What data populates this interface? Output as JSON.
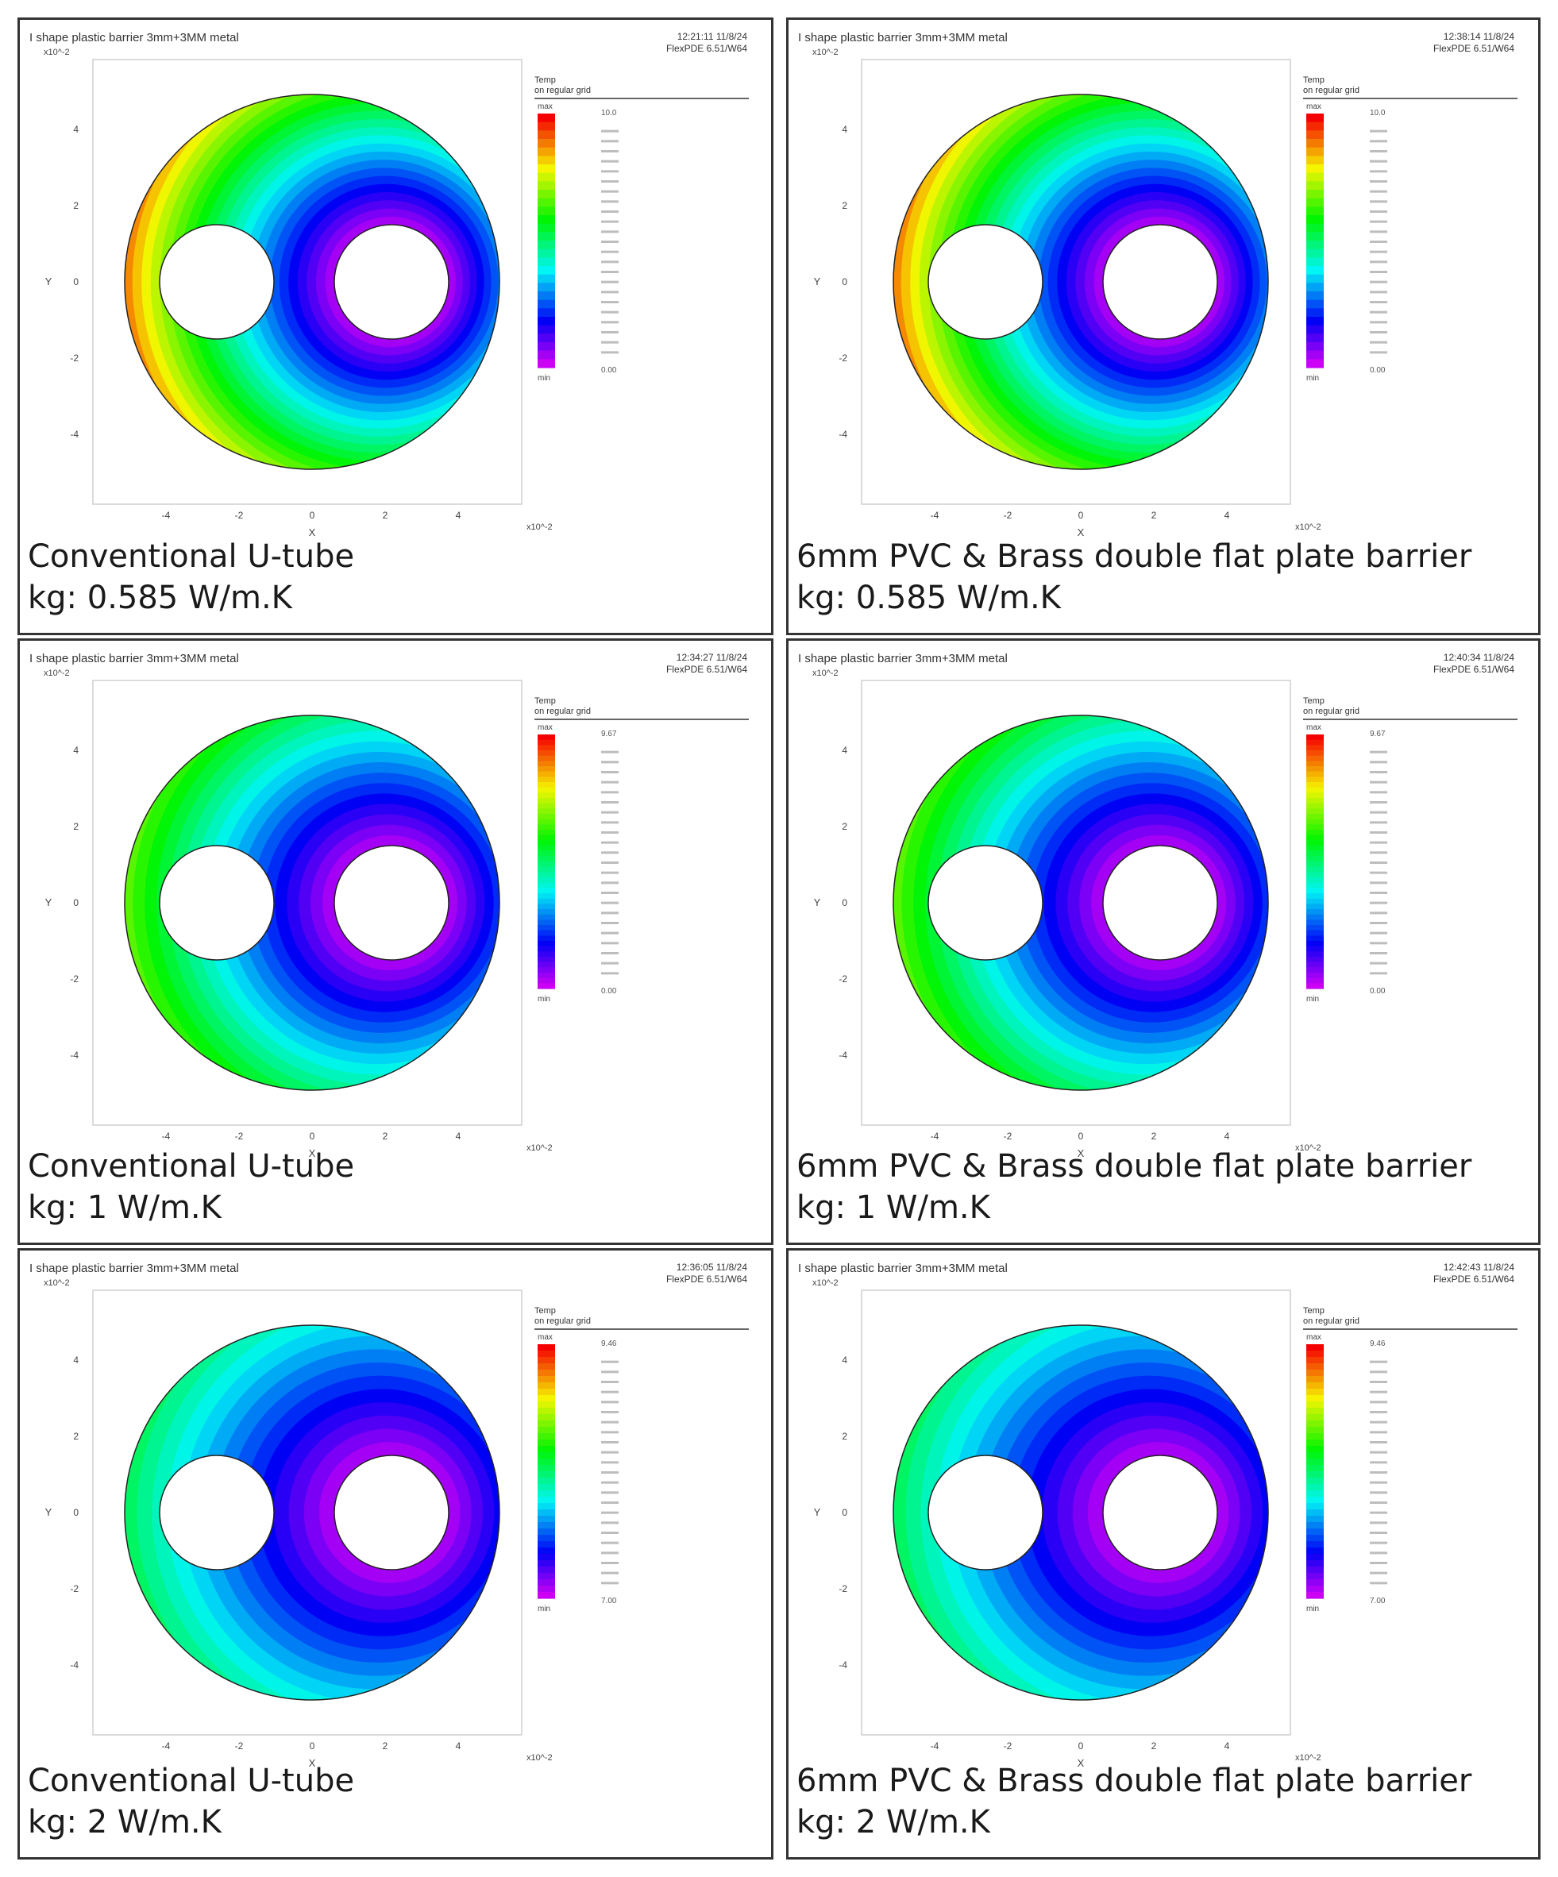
{
  "figure": {
    "panels": [
      {
        "id": "conv-0585",
        "header_title": "I shape plastic barrier 3mm+3MM metal",
        "timestamp": "12:21:11 11/8/24",
        "software": "FlexPDE 6.51/W64",
        "legend_title": "Temp",
        "legend_subtitle": "on regular grid",
        "caption_line1": "Conventional U-tube",
        "caption_line2": "kg: 0.585 W/m.K",
        "axis_x_label": "X",
        "axis_y_label": "Y",
        "scale_label": "x10^-2",
        "legend_max_label": "max",
        "legend_min_label": "min",
        "legend_max_value": "10.0",
        "legend_min_value": "0.00",
        "legend_steps": 30,
        "field_spread": 0.55
      },
      {
        "id": "pvc-0585",
        "header_title": "I shape plastic barrier 3mm+3MM metal",
        "timestamp": "12:38:14 11/8/24",
        "software": "FlexPDE 6.51/W64",
        "legend_title": "Temp",
        "legend_subtitle": "on regular grid",
        "caption_line1": "6mm PVC & Brass double flat plate barrier",
        "caption_line2": "kg: 0.585 W/m.K",
        "axis_x_label": "X",
        "axis_y_label": "Y",
        "scale_label": "x10^-2",
        "legend_max_label": "max",
        "legend_min_label": "min",
        "legend_max_value": "10.0",
        "legend_min_value": "0.00",
        "legend_steps": 30,
        "field_spread": 0.55
      },
      {
        "id": "conv-1",
        "header_title": "I shape plastic barrier 3mm+3MM metal",
        "timestamp": "12:34:27 11/8/24",
        "software": "FlexPDE 6.51/W64",
        "legend_title": "Temp",
        "legend_subtitle": "on regular grid",
        "caption_line1": "Conventional U-tube",
        "caption_line2": "kg: 1 W/m.K",
        "axis_x_label": "X",
        "axis_y_label": "Y",
        "scale_label": "x10^-2",
        "legend_max_label": "max",
        "legend_min_label": "min",
        "legend_max_value": "9.67",
        "legend_min_value": "0.00",
        "legend_steps": 48,
        "field_spread": 0.75
      },
      {
        "id": "pvc-1",
        "header_title": "I shape plastic barrier 3mm+3MM metal",
        "timestamp": "12:40:34 11/8/24",
        "software": "FlexPDE 6.51/W64",
        "legend_title": "Temp",
        "legend_subtitle": "on regular grid",
        "caption_line1": "6mm PVC & Brass double flat plate barrier",
        "caption_line2": "kg: 1 W/m.K",
        "axis_x_label": "X",
        "axis_y_label": "Y",
        "scale_label": "x10^-2",
        "legend_max_label": "max",
        "legend_min_label": "min",
        "legend_max_value": "9.67",
        "legend_min_value": "0.00",
        "legend_steps": 48,
        "field_spread": 0.75
      },
      {
        "id": "conv-2",
        "header_title": "I shape plastic barrier 3mm+3MM metal",
        "timestamp": "12:36:05 11/8/24",
        "software": "FlexPDE 6.51/W64",
        "legend_title": "Temp",
        "legend_subtitle": "on regular grid",
        "caption_line1": "Conventional U-tube",
        "caption_line2": "kg: 2 W/m.K",
        "axis_x_label": "X",
        "axis_y_label": "Y",
        "scale_label": "x10^-2",
        "legend_max_label": "max",
        "legend_min_label": "min",
        "legend_max_value": "9.46",
        "legend_min_value": "7.00",
        "legend_steps": 40,
        "field_spread": 1.0
      },
      {
        "id": "pvc-2",
        "header_title": "I shape plastic barrier 3mm+3MM metal",
        "timestamp": "12:42:43 11/8/24",
        "software": "FlexPDE 6.51/W64",
        "legend_title": "Temp",
        "legend_subtitle": "on regular grid",
        "caption_line1": "6mm PVC & Brass double flat plate barrier",
        "caption_line2": "kg: 2 W/m.K",
        "axis_x_label": "X",
        "axis_y_label": "Y",
        "scale_label": "x10^-2",
        "legend_max_label": "max",
        "legend_min_label": "min",
        "legend_max_value": "9.46",
        "legend_min_value": "7.00",
        "legend_steps": 40,
        "field_spread": 1.0
      }
    ],
    "x_ticks": [
      "-4",
      "-2",
      "0",
      "2",
      "4"
    ],
    "y_ticks": [
      "4",
      "2",
      "0",
      "-2",
      "-4"
    ],
    "colors": {
      "hot": "#e8261c",
      "cold": "#d10fe6",
      "panel_border": "#333333"
    }
  }
}
